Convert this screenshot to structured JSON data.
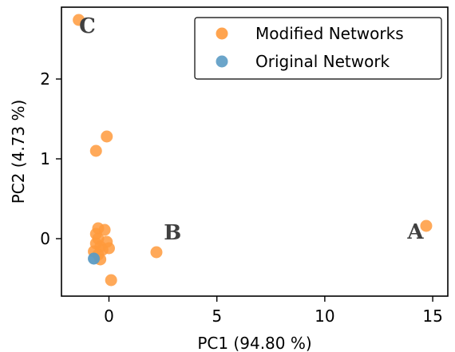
{
  "chart_data": {
    "type": "scatter",
    "xlabel": "PC1 (94.80 %)",
    "ylabel": "PC2 (4.73 %)",
    "xlim": [
      -2.2,
      15.7
    ],
    "ylim": [
      -0.72,
      2.9
    ],
    "xticks": [
      0,
      5,
      10,
      15
    ],
    "yticks": [
      0,
      1,
      2
    ],
    "grid": false,
    "legend_position": "top-right",
    "series": [
      {
        "name": "Modified Networks",
        "color": "#ff9a3c",
        "points": [
          [
            -1.4,
            2.74
          ],
          [
            -0.1,
            1.28
          ],
          [
            -0.6,
            1.1
          ],
          [
            -0.5,
            0.13
          ],
          [
            -0.2,
            0.11
          ],
          [
            -0.6,
            0.06
          ],
          [
            -0.5,
            0.0
          ],
          [
            -0.1,
            -0.04
          ],
          [
            -0.6,
            -0.06
          ],
          [
            -0.4,
            -0.1
          ],
          [
            0.0,
            -0.12
          ],
          [
            -0.3,
            -0.14
          ],
          [
            -0.7,
            -0.16
          ],
          [
            -0.5,
            -0.2
          ],
          [
            -0.4,
            -0.26
          ],
          [
            0.1,
            -0.52
          ],
          [
            2.2,
            -0.17
          ],
          [
            14.7,
            0.16
          ]
        ]
      },
      {
        "name": "Original Network",
        "color": "#5b9bc4",
        "points": [
          [
            -0.7,
            -0.25
          ]
        ]
      }
    ],
    "annotations": [
      {
        "label": "C",
        "x": -1.0,
        "y": 2.58
      },
      {
        "label": "B",
        "x": 2.95,
        "y": -0.01
      },
      {
        "label": "A",
        "x": 14.2,
        "y": -0.0
      }
    ]
  }
}
